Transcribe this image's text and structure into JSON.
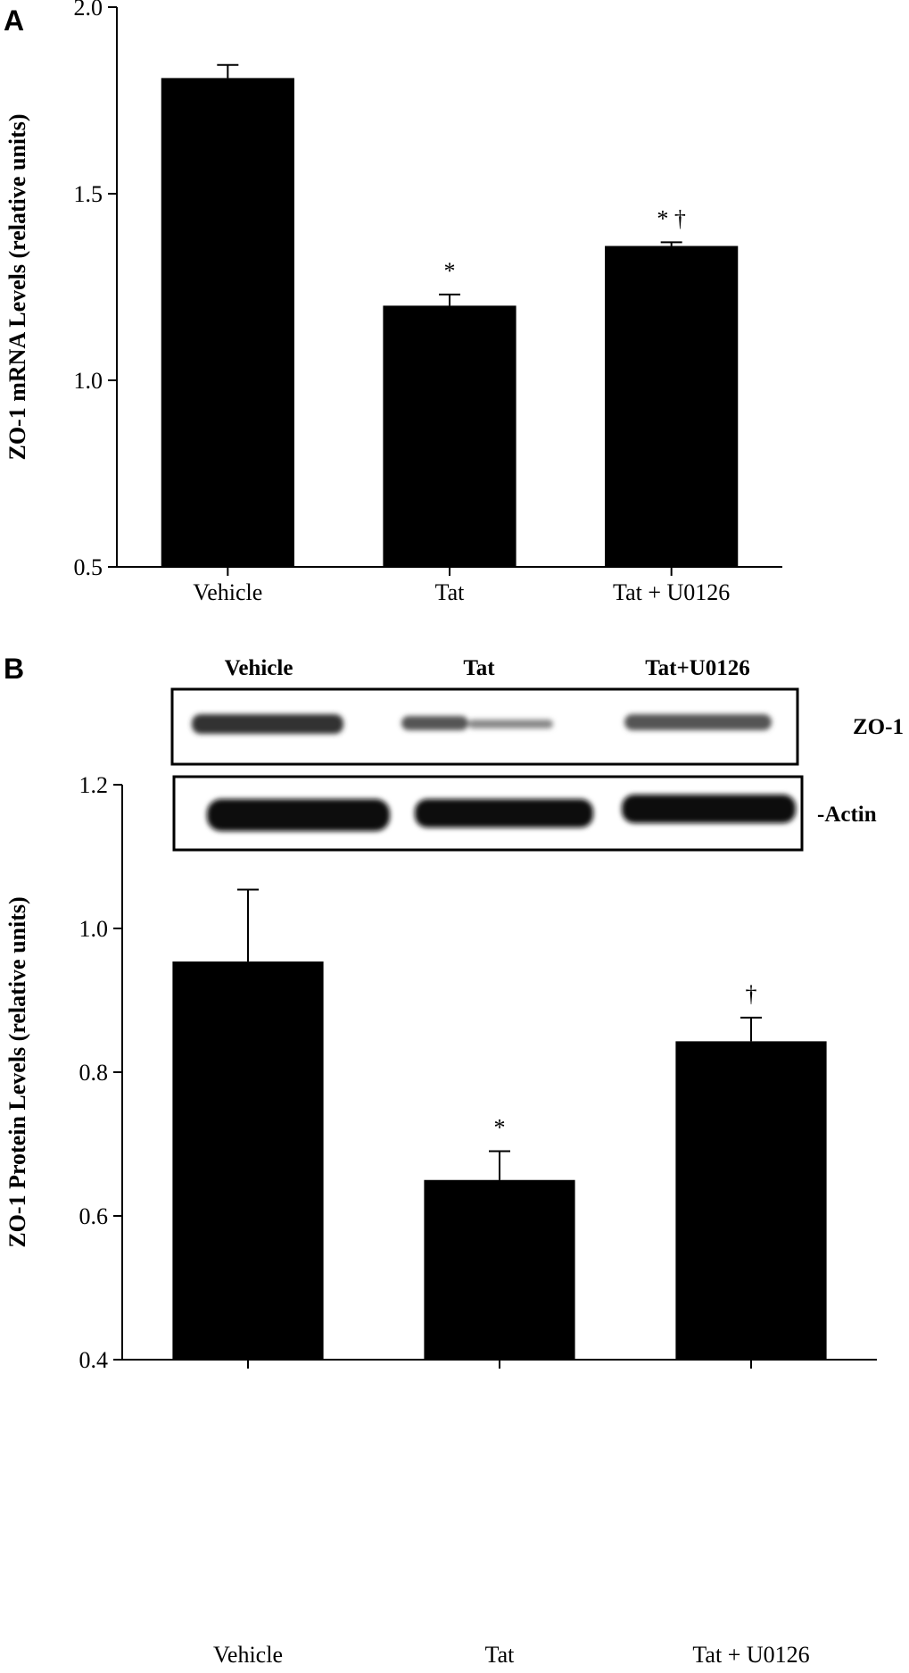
{
  "panels": [
    "A",
    "B"
  ],
  "blot": {
    "lanes": [
      "Vehicle",
      "Tat",
      "Tat+U0126"
    ],
    "rows": [
      "ZO-1",
      "-Actin"
    ]
  },
  "chart_data": [
    {
      "type": "bar",
      "ylabel": "ZO-1 mRNA Levels (relative units)",
      "categories": [
        "Vehicle",
        "Tat",
        "Tat + U0126"
      ],
      "values": [
        1.81,
        1.2,
        1.36
      ],
      "errors": [
        0.035,
        0.03,
        0.01
      ],
      "annotations": [
        null,
        "*",
        "* †"
      ],
      "color": "#000000",
      "ylim": [
        0.5,
        2.0
      ],
      "yticks": [
        0.5,
        {
          "value": 1,
          "label": "1.0"
        },
        1.5,
        {
          "value": 2,
          "label": "2.0"
        }
      ]
    },
    {
      "type": "bar",
      "ylabel": "ZO-1 Protein Levels (relative units)",
      "categories": [
        "Vehicle",
        "Tat",
        "Tat + U0126"
      ],
      "values": [
        0.954,
        0.65,
        0.843
      ],
      "errors": [
        0.1,
        0.04,
        0.033
      ],
      "annotations": [
        null,
        "*",
        "†"
      ],
      "color": "#000000",
      "ylim": [
        0.4,
        1.2
      ],
      "yticks": [
        0.4,
        0.6,
        0.8,
        {
          "value": 1,
          "label": "1.0"
        },
        1.2
      ]
    }
  ]
}
